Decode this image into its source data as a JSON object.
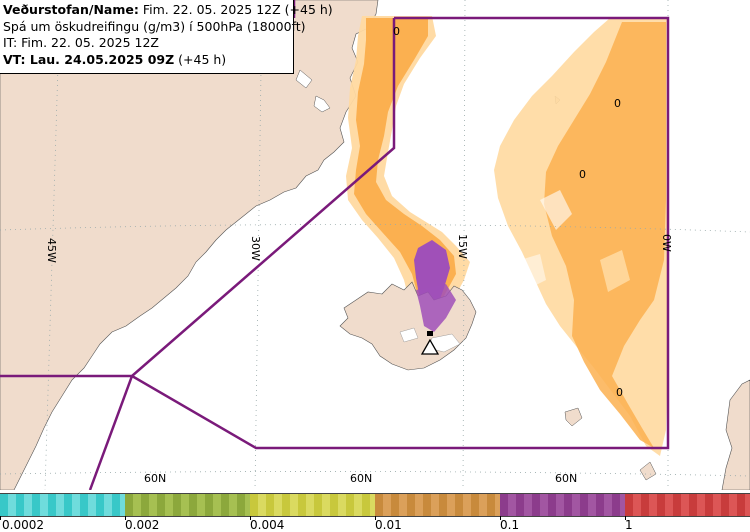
{
  "info": {
    "line1_bold": "Veðurstofan/Name:",
    "line1_rest": "Fim. 22. 05. 2025 12Z (+45 h)",
    "line2": "Spá um öskudreifingu (g/m3) í 500hPa (18000ft)",
    "line3": "IT: Fim. 22. 05. 2025 12Z",
    "line4_bold": "VT: Lau. 24.05.2025 09Z",
    "line4_rest": "(+45 h)"
  },
  "grid": {
    "lon_labels": [
      "45W",
      "30W",
      "15W",
      "0W"
    ],
    "lat_labels": [
      "60N",
      "60N",
      "60N"
    ]
  },
  "contour_labels": [
    "0",
    "0",
    "0",
    "0"
  ],
  "legend": {
    "tick_labels": [
      "0.0002",
      "0.002",
      "0.004",
      "0.01",
      "0.1",
      "1"
    ],
    "colors": [
      "#38c8c8",
      "#8ca83c",
      "#c8c83c",
      "#c88a3c",
      "#8c3c8c",
      "#c83c3c"
    ]
  },
  "colors": {
    "land": "#f0dccc",
    "sea": "#ffffff",
    "ash_light": "#ffd9a0",
    "ash_orange": "#fbb050",
    "ash_purple": "#a050b8",
    "boundary": "#7a1a7a"
  }
}
